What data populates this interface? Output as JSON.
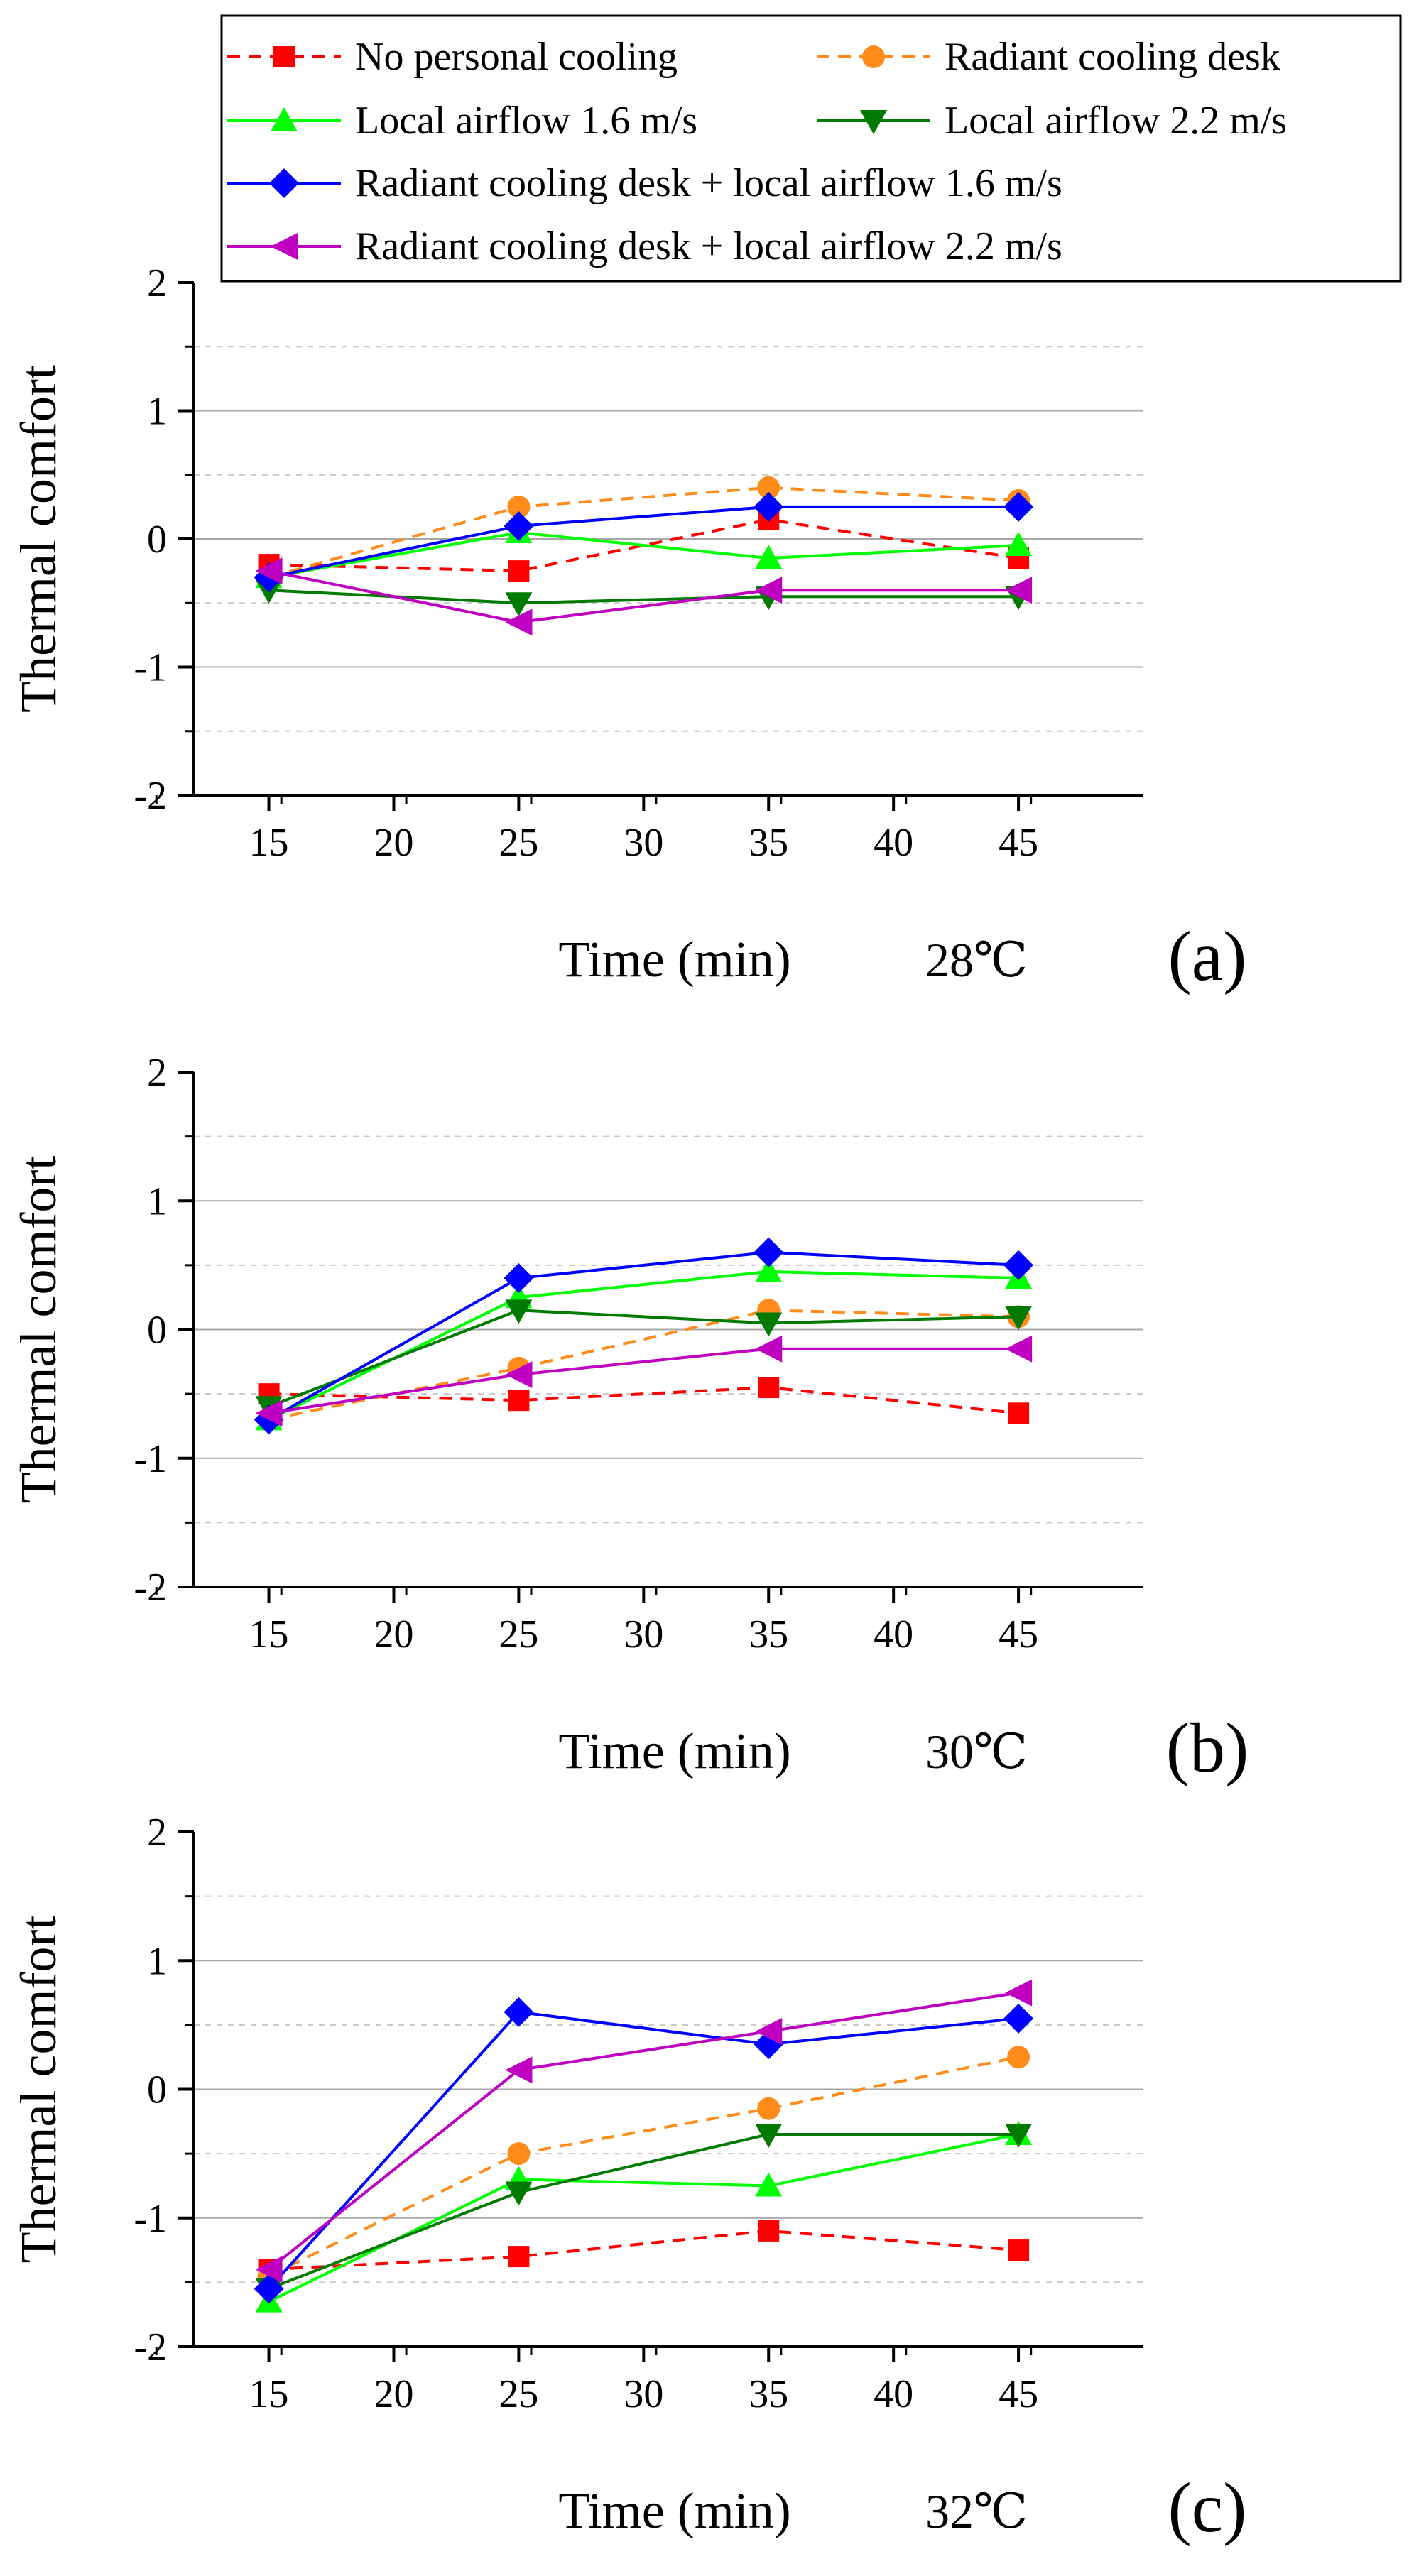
{
  "legend": {
    "entries": [
      "No personal cooling",
      "Radiant cooling desk",
      "Local airflow 1.6 m/s",
      "Local airflow 2.2 m/s",
      "Radiant cooling desk + local airflow 1.6 m/s",
      "Radiant cooling desk + local airflow 2.2 m/s"
    ]
  },
  "colors": {
    "No personal cooling": "#ff0000",
    "Radiant cooling desk": "#ff8c1a",
    "Local airflow 1.6 m/s": "#00ff00",
    "Local airflow 2.2 m/s": "#007a00",
    "Radiant cooling desk + local airflow 1.6 m/s": "#0000ff",
    "Radiant cooling desk + local airflow 2.2 m/s": "#c000c0"
  },
  "chart_data": [
    {
      "type": "line",
      "panel_label": "(a)",
      "temperature": "28℃",
      "xlabel": "Time (min)",
      "ylabel": "Thermal comfort",
      "xlim": [
        12,
        50
      ],
      "ylim": [
        -2,
        2
      ],
      "xticks": [
        15,
        20,
        25,
        30,
        35,
        40,
        45
      ],
      "yticks": [
        -2,
        -1,
        0,
        1,
        2
      ],
      "x": [
        15,
        25,
        35,
        45
      ],
      "series": [
        {
          "name": "No personal cooling",
          "values": [
            -0.2,
            -0.25,
            0.15,
            -0.15
          ]
        },
        {
          "name": "Radiant cooling desk",
          "values": [
            -0.3,
            0.25,
            0.4,
            0.3
          ]
        },
        {
          "name": "Local airflow 1.6 m/s",
          "values": [
            -0.3,
            0.05,
            -0.15,
            -0.05
          ]
        },
        {
          "name": "Local airflow 2.2 m/s",
          "values": [
            -0.4,
            -0.5,
            -0.45,
            -0.45
          ]
        },
        {
          "name": "Radiant cooling desk + local airflow 1.6 m/s",
          "values": [
            -0.3,
            0.1,
            0.25,
            0.25
          ]
        },
        {
          "name": "Radiant cooling desk + local airflow 2.2 m/s",
          "values": [
            -0.25,
            -0.65,
            -0.4,
            -0.4
          ]
        }
      ]
    },
    {
      "type": "line",
      "panel_label": "(b)",
      "temperature": "30℃",
      "xlabel": "Time (min)",
      "ylabel": "Thermal comfort",
      "xlim": [
        12,
        50
      ],
      "ylim": [
        -2,
        2
      ],
      "xticks": [
        15,
        20,
        25,
        30,
        35,
        40,
        45
      ],
      "yticks": [
        -2,
        -1,
        0,
        1,
        2
      ],
      "x": [
        15,
        25,
        35,
        45
      ],
      "series": [
        {
          "name": "No personal cooling",
          "values": [
            -0.5,
            -0.55,
            -0.45,
            -0.65
          ]
        },
        {
          "name": "Radiant cooling desk",
          "values": [
            -0.7,
            -0.3,
            0.15,
            0.1
          ]
        },
        {
          "name": "Local airflow 1.6 m/s",
          "values": [
            -0.7,
            0.25,
            0.45,
            0.4
          ]
        },
        {
          "name": "Local airflow 2.2 m/s",
          "values": [
            -0.6,
            0.15,
            0.05,
            0.1
          ]
        },
        {
          "name": "Radiant cooling desk + local airflow 1.6 m/s",
          "values": [
            -0.7,
            0.4,
            0.6,
            0.5
          ]
        },
        {
          "name": "Radiant cooling desk + local airflow 2.2 m/s",
          "values": [
            -0.65,
            -0.35,
            -0.15,
            -0.15
          ]
        }
      ]
    },
    {
      "type": "line",
      "panel_label": "(c)",
      "temperature": "32℃",
      "xlabel": "Time (min)",
      "ylabel": "Thermal comfort",
      "xlim": [
        12,
        50
      ],
      "ylim": [
        -2,
        2
      ],
      "xticks": [
        15,
        20,
        25,
        30,
        35,
        40,
        45
      ],
      "yticks": [
        -2,
        -1,
        0,
        1,
        2
      ],
      "x": [
        15,
        25,
        35,
        45
      ],
      "series": [
        {
          "name": "No personal cooling",
          "values": [
            -1.4,
            -1.3,
            -1.1,
            -1.25
          ]
        },
        {
          "name": "Radiant cooling desk",
          "values": [
            -1.45,
            -0.5,
            -0.15,
            0.25
          ]
        },
        {
          "name": "Local airflow 1.6 m/s",
          "values": [
            -1.65,
            -0.7,
            -0.75,
            -0.35
          ]
        },
        {
          "name": "Local airflow 2.2 m/s",
          "values": [
            -1.55,
            -0.8,
            -0.35,
            -0.35
          ]
        },
        {
          "name": "Radiant cooling desk + local airflow 1.6 m/s",
          "values": [
            -1.55,
            0.6,
            0.35,
            0.55
          ]
        },
        {
          "name": "Radiant cooling desk + local airflow 2.2 m/s",
          "values": [
            -1.4,
            0.15,
            0.45,
            0.75
          ]
        }
      ]
    }
  ]
}
